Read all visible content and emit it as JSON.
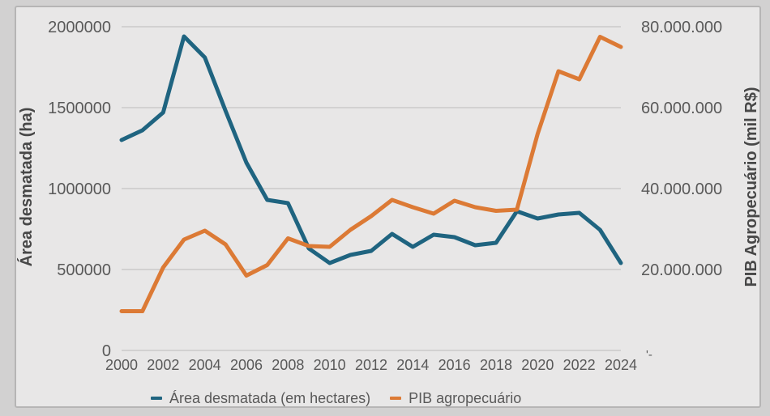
{
  "colors": {
    "canvas_bg": "#d2d1d1",
    "panel_bg": "#e8e7e7",
    "panel_border": "#b6b5b5",
    "gridline": "#c5c4c4",
    "tick_text": "#595959",
    "axis_title_text": "#474747",
    "series_blue": "#1f6480",
    "series_orange": "#dc7a35"
  },
  "chart_data": {
    "type": "line",
    "title": "",
    "grid": true,
    "legend_position": "bottom",
    "x": [
      2000,
      2001,
      2002,
      2003,
      2004,
      2005,
      2006,
      2007,
      2008,
      2009,
      2010,
      2011,
      2012,
      2013,
      2014,
      2015,
      2016,
      2017,
      2018,
      2019,
      2020,
      2021,
      2022,
      2023,
      2024
    ],
    "x_tick_labels": [
      "2000",
      "2002",
      "2004",
      "2006",
      "2008",
      "2010",
      "2012",
      "2014",
      "2016",
      "2018",
      "2020",
      "2022",
      "2024"
    ],
    "left_axis": {
      "title": "Área desmatada (ha)",
      "min": 0,
      "max": 2000000,
      "tick_labels": [
        "2000000",
        "1500000",
        "1000000",
        "500000",
        "0"
      ],
      "tick_values": [
        2000000,
        1500000,
        1000000,
        500000,
        0
      ]
    },
    "right_axis": {
      "title": "PIB Agropecuário (mil R$)",
      "min": 0,
      "max": 80000000,
      "tick_labels": [
        "80.000.000",
        "60.000.000",
        "40.000.000",
        "20.000.000"
      ],
      "tick_values": [
        80000000,
        60000000,
        40000000,
        20000000
      ],
      "zero_tick_label": "'-"
    },
    "series": [
      {
        "name": "Área desmatada (em hectares)",
        "axis": "left",
        "color": "#1f6480",
        "values": [
          1300000,
          1360000,
          1470000,
          1940000,
          1810000,
          1480000,
          1160000,
          930000,
          910000,
          630000,
          540000,
          590000,
          615000,
          720000,
          640000,
          715000,
          700000,
          650000,
          665000,
          860000,
          815000,
          840000,
          850000,
          745000,
          540000
        ]
      },
      {
        "name": "PIB agropecuário",
        "axis": "right",
        "color": "#dc7a35",
        "values": [
          9700000,
          9700000,
          20500000,
          27400000,
          29600000,
          26200000,
          18500000,
          21100000,
          27700000,
          25800000,
          25600000,
          29800000,
          33200000,
          37200000,
          35400000,
          33800000,
          37000000,
          35400000,
          34500000,
          34800000,
          53500000,
          69000000,
          67000000,
          77500000,
          75000000
        ]
      }
    ]
  }
}
